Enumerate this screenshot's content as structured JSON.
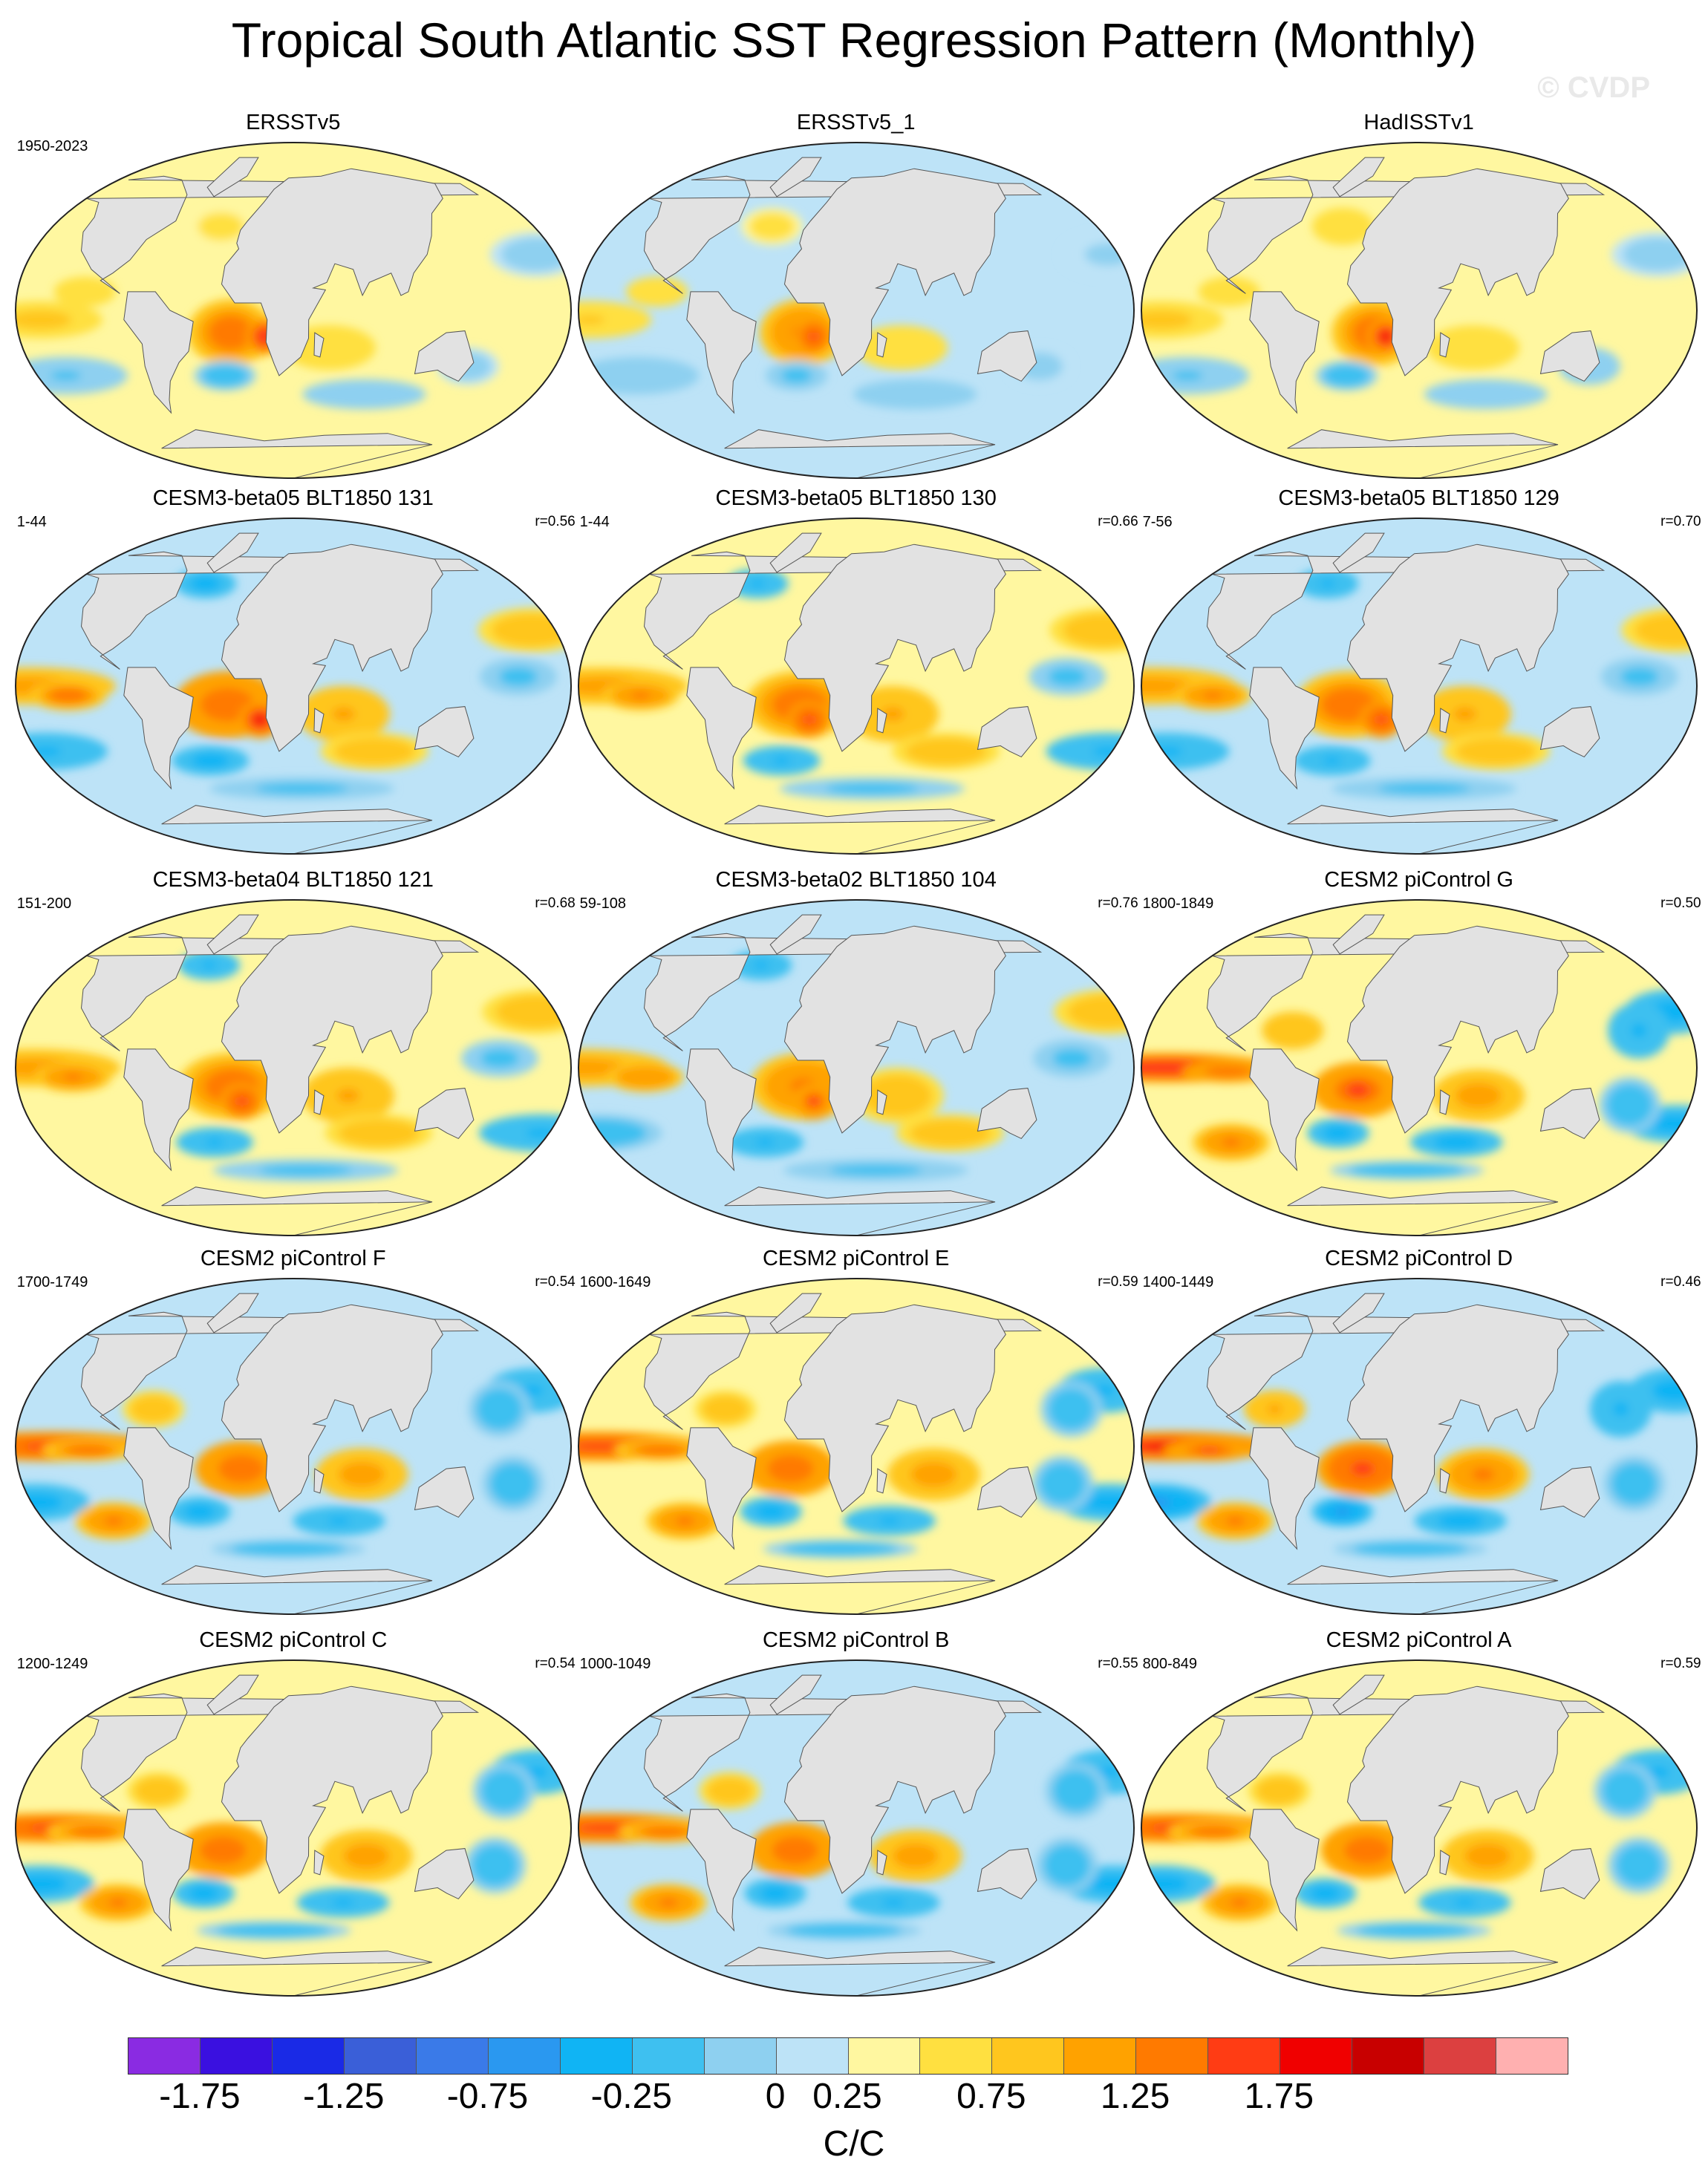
{
  "figure": {
    "title": "Tropical South Atlantic SST Regression Pattern (Monthly)",
    "watermark": "© CVDP",
    "colorbar_unit": "C/C"
  },
  "panels": [
    {
      "title": "ERSSTv5",
      "years": "1950-2023",
      "r": "",
      "pattern": "obs",
      "intensity": 0.75
    },
    {
      "title": "ERSSTv5_1",
      "years": "",
      "r": "",
      "pattern": "obs",
      "intensity": 0.7
    },
    {
      "title": "HadISSTv1",
      "years": "",
      "r": "",
      "pattern": "obs",
      "intensity": 0.8
    },
    {
      "title": "CESM3-beta05 BLT1850 131",
      "years": "1-44",
      "r": "r=0.56",
      "pattern": "model",
      "intensity": 0.9
    },
    {
      "title": "CESM3-beta05 BLT1850 130",
      "years": "1-44",
      "r": "r=0.66",
      "pattern": "model",
      "intensity": 0.85
    },
    {
      "title": "CESM3-beta05 BLT1850 129",
      "years": "7-56",
      "r": "r=0.70",
      "pattern": "model",
      "intensity": 0.85
    },
    {
      "title": "CESM3-beta04 BLT1850 121",
      "years": "151-200",
      "r": "r=0.68",
      "pattern": "model",
      "intensity": 0.85
    },
    {
      "title": "CESM3-beta02 BLT1850 104",
      "years": "59-108",
      "r": "r=0.76",
      "pattern": "model",
      "intensity": 0.75
    },
    {
      "title": "CESM2 piControl G",
      "years": "1800-1849",
      "r": "r=0.50",
      "pattern": "enso",
      "intensity": 1.0
    },
    {
      "title": "CESM2 piControl F",
      "years": "1700-1749",
      "r": "r=0.54",
      "pattern": "enso",
      "intensity": 0.95
    },
    {
      "title": "CESM2 piControl E",
      "years": "1600-1649",
      "r": "r=0.59",
      "pattern": "enso",
      "intensity": 0.95
    },
    {
      "title": "CESM2 piControl D",
      "years": "1400-1449",
      "r": "r=0.46",
      "pattern": "enso",
      "intensity": 1.1
    },
    {
      "title": "CESM2 piControl C",
      "years": "1200-1249",
      "r": "r=0.54",
      "pattern": "enso",
      "intensity": 0.95
    },
    {
      "title": "CESM2 piControl B",
      "years": "1000-1049",
      "r": "r=0.55",
      "pattern": "enso",
      "intensity": 0.95
    },
    {
      "title": "CESM2 piControl A",
      "years": "800-849",
      "r": "r=0.59",
      "pattern": "enso",
      "intensity": 0.95
    }
  ],
  "colorbar": {
    "colors": [
      "#8a2be2",
      "#3a10e0",
      "#1a2ae6",
      "#3a5fd8",
      "#3a7ae8",
      "#2a98f0",
      "#10b4f4",
      "#3ec0f0",
      "#8ed0f0",
      "#bde3f7",
      "#fff7a0",
      "#ffe040",
      "#ffc61e",
      "#ffa200",
      "#ff7a00",
      "#ff3c14",
      "#f00000",
      "#c80000",
      "#dc4040",
      "#ffb0b0"
    ],
    "tick_labels": [
      "-1.75",
      "-1.25",
      "-0.75",
      "-0.25",
      "0",
      "0.25",
      "0.75",
      "1.25",
      "1.75"
    ],
    "tick_boundary_index": [
      1,
      3,
      5,
      7,
      9,
      10,
      12,
      14,
      16
    ]
  },
  "chart_data": {
    "type": "heatmap",
    "title": "Tropical South Atlantic SST Regression Pattern (Monthly)",
    "unit": "C/C",
    "color_levels": [
      -2.0,
      -1.75,
      -1.5,
      -1.25,
      -1.0,
      -0.75,
      -0.5,
      -0.25,
      -0.1,
      0,
      0.1,
      0.25,
      0.5,
      0.75,
      1.0,
      1.25,
      1.5,
      1.75,
      2.0
    ],
    "panels": [
      {
        "name": "ERSSTv5",
        "years": "1950-2023",
        "pattern_r": null
      },
      {
        "name": "ERSSTv5_1",
        "years": null,
        "pattern_r": null
      },
      {
        "name": "HadISSTv1",
        "years": null,
        "pattern_r": null
      },
      {
        "name": "CESM3-beta05 BLT1850 131",
        "years": "1-44",
        "pattern_r": 0.56
      },
      {
        "name": "CESM3-beta05 BLT1850 130",
        "years": "1-44",
        "pattern_r": 0.66
      },
      {
        "name": "CESM3-beta05 BLT1850 129",
        "years": "7-56",
        "pattern_r": 0.7
      },
      {
        "name": "CESM3-beta04 BLT1850 121",
        "years": "151-200",
        "pattern_r": 0.68
      },
      {
        "name": "CESM3-beta02 BLT1850 104",
        "years": "59-108",
        "pattern_r": 0.76
      },
      {
        "name": "CESM2 piControl G",
        "years": "1800-1849",
        "pattern_r": 0.5
      },
      {
        "name": "CESM2 piControl F",
        "years": "1700-1749",
        "pattern_r": 0.54
      },
      {
        "name": "CESM2 piControl E",
        "years": "1600-1649",
        "pattern_r": 0.59
      },
      {
        "name": "CESM2 piControl D",
        "years": "1400-1449",
        "pattern_r": 0.46
      },
      {
        "name": "CESM2 piControl C",
        "years": "1200-1249",
        "pattern_r": 0.54
      },
      {
        "name": "CESM2 piControl B",
        "years": "1000-1049",
        "pattern_r": 0.55
      },
      {
        "name": "CESM2 piControl A",
        "years": "800-849",
        "pattern_r": 0.59
      }
    ]
  }
}
